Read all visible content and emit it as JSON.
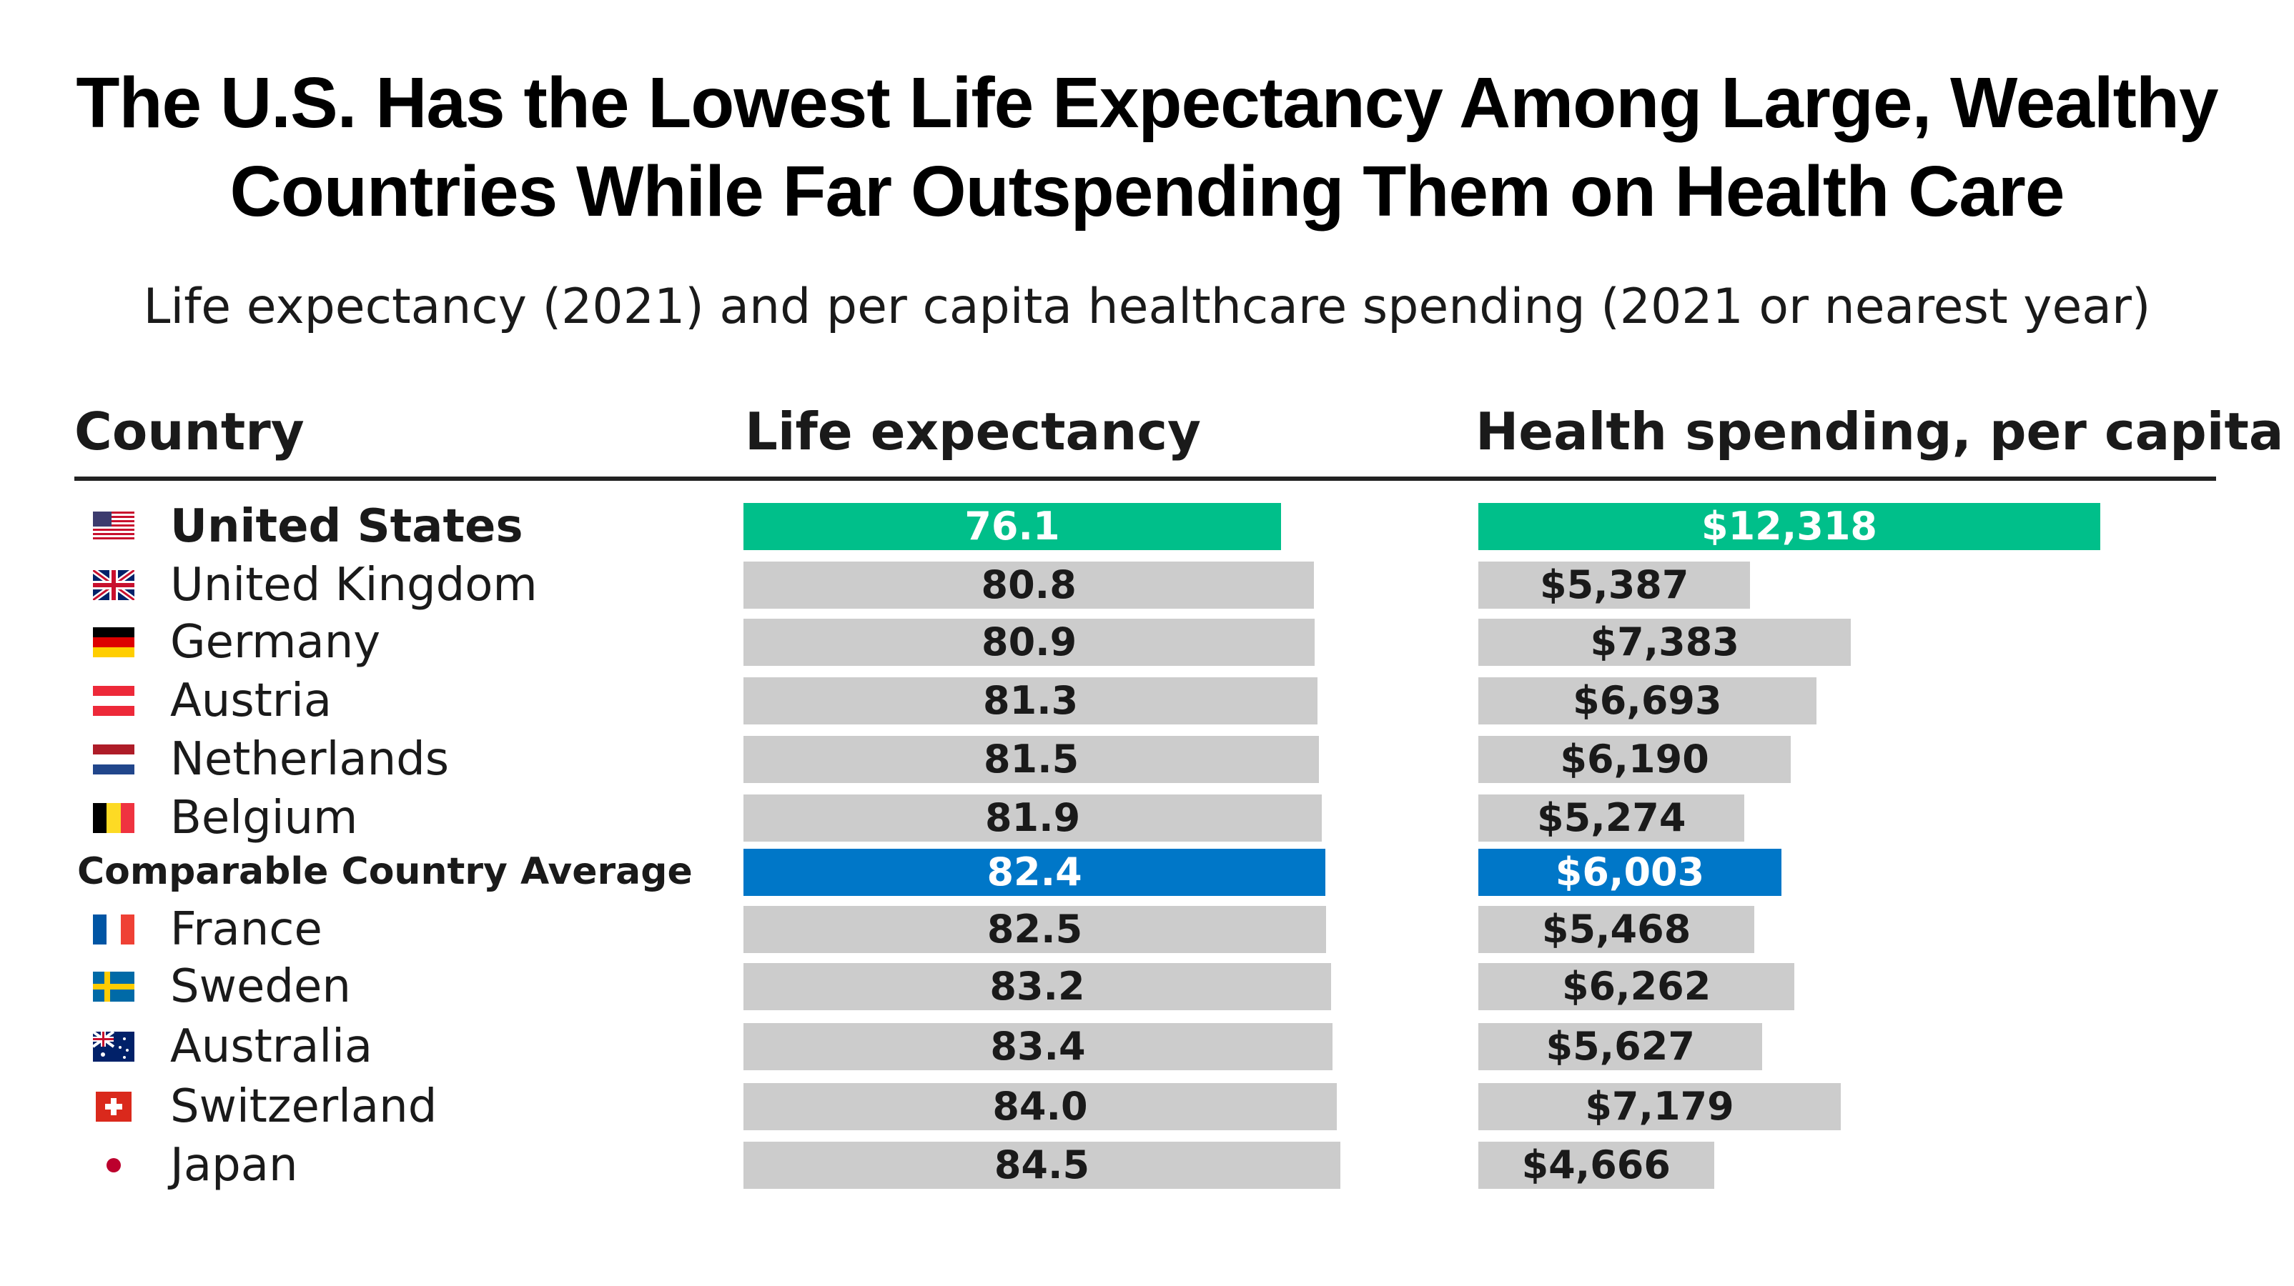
{
  "title_line1": "The U.S. Has the Lowest Life Expectancy Among Large, Wealthy",
  "title_line2": "Countries While Far Outspending Them on Health Care",
  "subtitle": "Life expectancy (2021) and per capita healthcare spending (2021 or nearest year)",
  "columns": {
    "country": "Country",
    "life": "Life expectancy",
    "spend": "Health spending, per capita"
  },
  "colors": {
    "highlight_us": "#00bf8a",
    "highlight_avg": "#0077c8",
    "default_bar": "#cccccc"
  },
  "chart_data": {
    "type": "bar",
    "orientation": "horizontal",
    "categories": [
      "United States",
      "United Kingdom",
      "Germany",
      "Austria",
      "Netherlands",
      "Belgium",
      "Comparable Country Average",
      "France",
      "Sweden",
      "Australia",
      "Switzerland",
      "Japan"
    ],
    "series": [
      {
        "name": "Life expectancy",
        "values": [
          76.1,
          80.8,
          80.9,
          81.3,
          81.5,
          81.9,
          82.4,
          82.5,
          83.2,
          83.4,
          84.0,
          84.5
        ]
      },
      {
        "name": "Health spending, per capita",
        "values": [
          12318,
          5387,
          7383,
          6693,
          6190,
          5274,
          6003,
          5468,
          6262,
          5627,
          7179,
          4666
        ]
      }
    ]
  },
  "rows": [
    {
      "name": "United States",
      "flag": "us-flag-icon",
      "life": "76.1",
      "spend": "$12,318",
      "style": "us"
    },
    {
      "name": "United Kingdom",
      "flag": "uk-flag-icon",
      "life": "80.8",
      "spend": "$5,387",
      "style": "default"
    },
    {
      "name": "Germany",
      "flag": "germany-flag-icon",
      "life": "80.9",
      "spend": "$7,383",
      "style": "default"
    },
    {
      "name": "Austria",
      "flag": "austria-flag-icon",
      "life": "81.3",
      "spend": "$6,693",
      "style": "default"
    },
    {
      "name": "Netherlands",
      "flag": "netherlands-flag-icon",
      "life": "81.5",
      "spend": "$6,190",
      "style": "default"
    },
    {
      "name": "Belgium",
      "flag": "belgium-flag-icon",
      "life": "81.9",
      "spend": "$5,274",
      "style": "default"
    },
    {
      "name": "Comparable Country Average",
      "flag": "",
      "life": "82.4",
      "spend": "$6,003",
      "style": "avg"
    },
    {
      "name": "France",
      "flag": "france-flag-icon",
      "life": "82.5",
      "spend": "$5,468",
      "style": "default"
    },
    {
      "name": "Sweden",
      "flag": "sweden-flag-icon",
      "life": "83.2",
      "spend": "$6,262",
      "style": "default"
    },
    {
      "name": "Australia",
      "flag": "australia-flag-icon",
      "life": "83.4",
      "spend": "$5,627",
      "style": "default"
    },
    {
      "name": "Switzerland",
      "flag": "switzerland-flag-icon",
      "life": "84.0",
      "spend": "$7,179",
      "style": "default"
    },
    {
      "name": "Japan",
      "flag": "japan-flag-icon",
      "life": "84.5",
      "spend": "$4,666",
      "style": "default"
    }
  ]
}
